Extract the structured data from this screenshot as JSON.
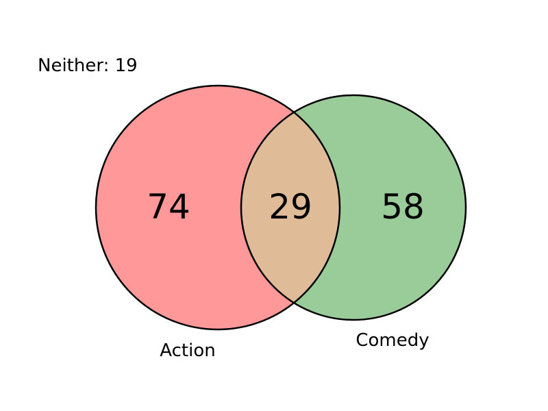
{
  "venn": {
    "sets": [
      {
        "name": "Action",
        "only_count": "74",
        "color": "#ff9999"
      },
      {
        "name": "Comedy",
        "only_count": "58",
        "color": "#99cc99"
      }
    ],
    "intersection": {
      "count": "29",
      "color": "#dfbb98"
    },
    "neither": {
      "label": "Neither: 19",
      "count": 19
    },
    "outline_color": "#000000"
  }
}
